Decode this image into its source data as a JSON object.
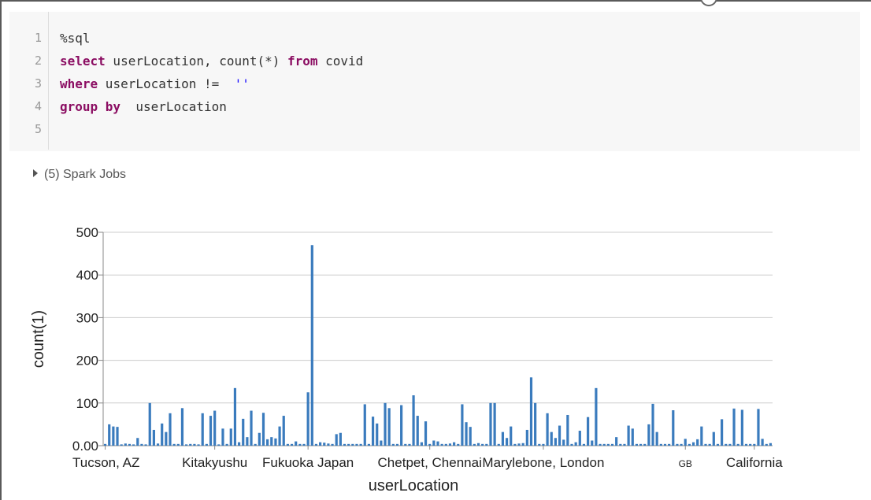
{
  "code": {
    "lines": [
      [
        {
          "t": "%sql",
          "c": ""
        }
      ],
      [
        {
          "t": "select",
          "c": "kw"
        },
        {
          "t": " userLocation, count(*) ",
          "c": ""
        },
        {
          "t": "from",
          "c": "kw"
        },
        {
          "t": " covid",
          "c": ""
        }
      ],
      [
        {
          "t": "where",
          "c": "kw"
        },
        {
          "t": " userLocation != ",
          "c": ""
        },
        {
          "t": " ''",
          "c": "str"
        }
      ],
      [
        {
          "t": "group by",
          "c": "kw"
        },
        {
          "t": "  userLocation",
          "c": ""
        }
      ],
      []
    ],
    "line_numbers": [
      "1",
      "2",
      "3",
      "4",
      "5"
    ]
  },
  "spark_jobs": {
    "label": "(5) Spark Jobs"
  },
  "colors": {
    "bar": "#3a7bbd",
    "grid": "#cccccc",
    "axis": "#888888",
    "keyword": "#8b0d62",
    "string": "#1a0dff"
  },
  "chart_data": {
    "type": "bar",
    "xlabel": "userLocation",
    "ylabel": "count(1)",
    "ylim": [
      0,
      500
    ],
    "yticks": [
      {
        "v": 0,
        "label": "0.00"
      },
      {
        "v": 100,
        "label": "100"
      },
      {
        "v": 200,
        "label": "200"
      },
      {
        "v": 300,
        "label": "300"
      },
      {
        "v": 400,
        "label": "400"
      },
      {
        "v": 500,
        "label": "500"
      }
    ],
    "grid": true,
    "legend": "none",
    "visible_category_labels": [
      {
        "index": 0,
        "label": "Tucson, AZ"
      },
      {
        "index": 27,
        "label": "Kitakyushu"
      },
      {
        "index": 50,
        "label": "Fukuoka Japan"
      },
      {
        "index": 80,
        "label": "Chetpet, Chennai"
      },
      {
        "index": 108,
        "label": "Marylebone, London"
      },
      {
        "index": 143,
        "label": "GB"
      },
      {
        "index": 160,
        "label": "California"
      }
    ],
    "values": [
      4,
      50,
      45,
      44,
      3,
      5,
      4,
      3,
      18,
      4,
      3,
      100,
      37,
      5,
      52,
      32,
      76,
      4,
      4,
      88,
      3,
      4,
      4,
      3,
      76,
      4,
      70,
      82,
      3,
      40,
      4,
      40,
      135,
      8,
      63,
      20,
      82,
      4,
      30,
      77,
      15,
      20,
      17,
      45,
      70,
      4,
      4,
      10,
      4,
      4,
      125,
      470,
      4,
      8,
      7,
      5,
      4,
      27,
      30,
      4,
      4,
      4,
      4,
      4,
      97,
      4,
      68,
      52,
      12,
      100,
      88,
      4,
      4,
      95,
      4,
      4,
      118,
      70,
      8,
      57,
      4,
      12,
      10,
      4,
      4,
      5,
      8,
      4,
      97,
      55,
      44,
      4,
      6,
      4,
      4,
      100,
      100,
      4,
      32,
      18,
      45,
      4,
      5,
      6,
      37,
      160,
      100,
      4,
      4,
      76,
      32,
      18,
      47,
      14,
      72,
      4,
      8,
      35,
      4,
      67,
      12,
      135,
      4,
      4,
      4,
      4,
      20,
      4,
      4,
      47,
      40,
      4,
      4,
      4,
      50,
      98,
      32,
      4,
      4,
      4,
      83,
      4,
      4,
      16,
      4,
      8,
      15,
      45,
      4,
      4,
      32,
      4,
      62,
      4,
      4,
      87,
      4,
      84,
      4,
      4,
      4,
      86,
      16,
      4,
      6
    ]
  }
}
